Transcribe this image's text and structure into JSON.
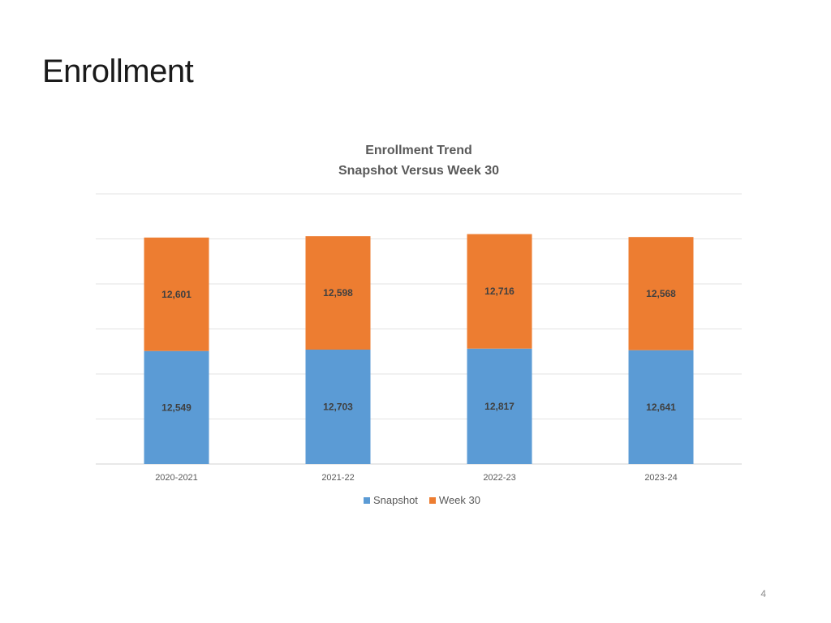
{
  "slide": {
    "title": "Enrollment",
    "page_number": "4"
  },
  "chart_data": {
    "type": "bar",
    "stacked": true,
    "title_line1": "Enrollment Trend",
    "title_line2": "Snapshot Versus Week 30",
    "categories": [
      "2020-2021",
      "2021-22",
      "2022-23",
      "2023-24"
    ],
    "series": [
      {
        "name": "Snapshot",
        "color": "#5B9BD5",
        "values": [
          12549,
          12703,
          12817,
          12641
        ],
        "labels": [
          "12,549",
          "12,703",
          "12,817",
          "12,641"
        ]
      },
      {
        "name": "Week 30",
        "color": "#ED7D31",
        "values": [
          12601,
          12598,
          12716,
          12568
        ],
        "labels": [
          "12,601",
          "12,598",
          "12,716",
          "12,568"
        ]
      }
    ],
    "ylim": [
      0,
      30000
    ],
    "grid": true,
    "legend_position": "bottom"
  }
}
